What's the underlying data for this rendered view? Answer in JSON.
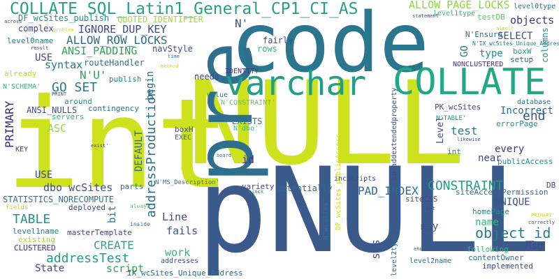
{
  "words": [
    {
      "text": "NULL",
      "color": "#cde11d"
    },
    {
      "text": "int",
      "color": "#cde11d"
    },
    {
      "text": "pNULL",
      "color": "#3b5a8c"
    },
    {
      "text": "code",
      "color": "#2a768e"
    },
    {
      "text": "pre",
      "color": "#2e6e8e"
    },
    {
      "text": "varchar",
      "color": "#1f9e89"
    },
    {
      "text": "COLLATE",
      "color": "#22a884"
    },
    {
      "text": "COLLATE SQL_Latin1_General_CP1_CI_AS",
      "color": "#2a9f86"
    },
    {
      "text": "ALLOW_PAGE_LOCKS",
      "color": "#8fd744"
    },
    {
      "text": "IGNORE_DUP_KEY",
      "color": "#3e4a89"
    },
    {
      "text": "ALLOW_ROW_LOCKS",
      "color": "#31688e"
    },
    {
      "text": "ANSI_PADDING",
      "color": "#31a354"
    },
    {
      "text": "DF_wcSites_publish",
      "color": "#21908d"
    },
    {
      "text": "QUOTED_IDENTIFIER",
      "color": "#a0da39"
    },
    {
      "text": "complex",
      "color": "#3e4a89"
    },
    {
      "text": "level0name",
      "color": "#287d8e"
    },
    {
      "text": "level1type",
      "color": "#35b779"
    },
    {
      "text": "testDB",
      "color": "#5ec962"
    },
    {
      "text": "level0type",
      "color": "#2c728e"
    },
    {
      "text": "objects",
      "color": "#443983"
    },
    {
      "text": "SELECT",
      "color": "#3b528b"
    },
    {
      "text": "columns",
      "color": "#21918c"
    },
    {
      "text": "N'Ensure",
      "color": "#2c728e"
    },
    {
      "text": "N'IX_wcSites_Unique_Address'",
      "color": "#287d8e"
    },
    {
      "text": "boxW",
      "color": "#1f9e89"
    },
    {
      "text": "setup",
      "color": "#31688e"
    },
    {
      "text": "NONCLUSTERED",
      "color": "#46327e"
    },
    {
      "text": "type",
      "color": "#21918c"
    },
    {
      "text": "GO",
      "color": "#2c728e"
    },
    {
      "text": "N'",
      "color": "#3b528b"
    },
    {
      "text": "fairly",
      "color": "#3e4a89"
    },
    {
      "text": "rows",
      "color": "#35b779"
    },
    {
      "text": "navStyle",
      "color": "#3b528b"
    },
    {
      "text": "syntax",
      "color": "#2a788e"
    },
    {
      "text": "USE",
      "color": "#3e4a89"
    },
    {
      "text": "routeHandler",
      "color": "#2c728e"
    },
    {
      "text": "publish",
      "color": "#21908d"
    },
    {
      "text": "N'U'",
      "color": "#31a354"
    },
    {
      "text": "GO SET",
      "color": "#2a788e"
    },
    {
      "text": "begin",
      "color": "#31688e"
    },
    {
      "text": "already",
      "color": "#b5de2b"
    },
    {
      "text": "N'SCHEMA'",
      "color": "#35b779"
    },
    {
      "text": "needs",
      "color": "#3e4a89"
    },
    {
      "text": "IDENTITY",
      "color": "#443983"
    },
    {
      "text": "value",
      "color": "#2c728e"
    },
    {
      "text": "N'CONSTRAINT'",
      "color": "#5ec962"
    },
    {
      "text": "PRIMARY",
      "color": "#3f2c80"
    },
    {
      "text": "ANSI_NULLS",
      "color": "#3e4a89"
    },
    {
      "text": "around",
      "color": "#21918c"
    },
    {
      "text": "contingency",
      "color": "#2c728e"
    },
    {
      "text": "ASC",
      "color": "#8fd744"
    },
    {
      "text": "DEFAULT",
      "color": "#31688e"
    },
    {
      "text": "addressProduction",
      "color": "#2e6e8e"
    },
    {
      "text": "N'dbo'",
      "color": "#35b779"
    },
    {
      "text": "EXISTS",
      "color": "#2a788e"
    },
    {
      "text": "boxH",
      "color": "#3e4a89"
    },
    {
      "text": "EXEC",
      "color": "#31688e"
    },
    {
      "text": "id",
      "color": "#46327e"
    },
    {
      "text": "KEY",
      "color": "#443983"
    },
    {
      "text": "USE",
      "color": "#3e4a89"
    },
    {
      "text": "dbo wcSites",
      "color": "#3b528b"
    },
    {
      "text": "STATISTICS_NORECOMPUTE",
      "color": "#2a788e"
    },
    {
      "text": "TABLE",
      "color": "#21918c"
    },
    {
      "text": "fields'",
      "color": "#b5de2b"
    },
    {
      "text": "deployed",
      "color": "#3e4a89"
    },
    {
      "text": "parts",
      "color": "#2c728e"
    },
    {
      "text": "N'MS_Description'",
      "color": "#2a788e"
    },
    {
      "text": "variety",
      "color": "#3e4a89"
    },
    {
      "text": "potentially",
      "color": "#31688e"
    },
    {
      "text": "CONSTRAINT",
      "color": "#1f9e89"
    },
    {
      "text": "PAD_INDEX",
      "color": "#31688e"
    },
    {
      "text": "siteCSS",
      "color": "#3e4a89"
    },
    {
      "text": "PK_wcSites",
      "color": "#3e4a89"
    },
    {
      "text": "N'TABLE'",
      "color": "#21918c"
    },
    {
      "text": "Incorrect",
      "color": "#2c728e"
    },
    {
      "text": "test",
      "color": "#2a788e"
    },
    {
      "text": "end",
      "color": "#3b528b"
    },
    {
      "text": "database",
      "color": "#2c728e"
    },
    {
      "text": "errorPage",
      "color": "#21918c"
    },
    {
      "text": "every",
      "color": "#443983"
    },
    {
      "text": "int",
      "color": "#2a788e"
    },
    {
      "text": "near",
      "color": "#3e4a89"
    },
    {
      "text": "publicAccess",
      "color": "#21918c"
    },
    {
      "text": "siteAccessPermission",
      "color": "#31688e"
    },
    {
      "text": "UNIQUE",
      "color": "#3b528b"
    },
    {
      "text": "homePage",
      "color": "#21918c"
    },
    {
      "text": "object_id",
      "color": "#2a788e"
    },
    {
      "text": "name",
      "color": "#35b779"
    },
    {
      "text": "Msg",
      "color": "#3e4a89"
    },
    {
      "text": "may",
      "color": "#3b528b"
    },
    {
      "text": "following",
      "color": "#35b779"
    },
    {
      "text": "contentOwner",
      "color": "#2c728e"
    },
    {
      "text": "implemented",
      "color": "#3e4a89"
    },
    {
      "text": "level2name",
      "color": "#31688e"
    },
    {
      "text": "addressTest",
      "color": "#1f9e89"
    },
    {
      "text": "State",
      "color": "#3e4a89"
    },
    {
      "text": "CREATE",
      "color": "#3b9e89"
    },
    {
      "text": "script",
      "color": "#31a354"
    },
    {
      "text": "masterTemplate",
      "color": "#3e4a89"
    },
    {
      "text": "level1name",
      "color": "#2a788e"
    },
    {
      "text": "existing",
      "color": "#a0da39"
    },
    {
      "text": "CLUSTERED",
      "color": "#46327e"
    },
    {
      "text": "inside",
      "color": "#2c728e"
    },
    {
      "text": "always",
      "color": "#5ec962"
    },
    {
      "text": "bit",
      "color": "#2a788e"
    },
    {
      "text": "Line",
      "color": "#3e4a89"
    },
    {
      "text": "fails",
      "color": "#3b528b"
    },
    {
      "text": "work",
      "color": "#35b779"
    },
    {
      "text": "addresses",
      "color": "#3e4a89"
    },
    {
      "text": "IX_wcSites_Unique_Address",
      "color": "#2c728e"
    },
    {
      "text": "DF_wcSites_publicAccess",
      "color": "#cde11d"
    },
    {
      "text": "sp_addextendedproperty",
      "color": "#3e4a89"
    },
    {
      "text": "N'wcSites'",
      "color": "#2c728e"
    },
    {
      "text": "level2type",
      "color": "#31688e"
    },
    {
      "text": "incScripts",
      "color": "#3e4a89"
    },
    {
      "text": "sys",
      "color": "#3b528b"
    },
    {
      "text": "Level",
      "color": "#3e4a89"
    },
    {
      "text": "DB",
      "color": "#3e4a89"
    },
    {
      "text": "statement",
      "color": "#3e4a89"
    },
    {
      "text": "almost",
      "color": "#b5de2b"
    },
    {
      "text": "across",
      "color": "#3e4a89"
    },
    {
      "text": "problem",
      "color": "#cde11d"
    },
    {
      "text": "result",
      "color": "#3e4a89"
    },
    {
      "text": "time",
      "color": "#2c728e"
    },
    {
      "text": "method",
      "color": "#cde11d"
    },
    {
      "text": "PRINT",
      "color": "#3e4a89"
    },
    {
      "text": "servers",
      "color": "#35b779"
    },
    {
      "text": "exist'",
      "color": "#3e4a89"
    },
    {
      "text": "board",
      "color": "#2c728e"
    },
    {
      "text": "block",
      "color": "#21918c"
    },
    {
      "text": "likewise",
      "color": "#3e4a89"
    },
    {
      "text": "put",
      "color": "#3e4a89"
    },
    {
      "text": "PRIMARY'",
      "color": "#cde11d"
    },
    {
      "text": "correctly",
      "color": "#3e4a89"
    },
    {
      "text": "end'",
      "color": "#2c728e"
    }
  ]
}
